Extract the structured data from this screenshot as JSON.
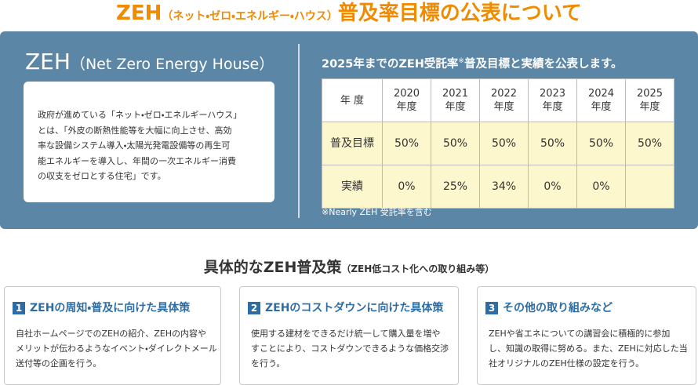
{
  "header": {
    "title_main": "ZEH",
    "title_note": "（ネット・ゼロ・エネルギー・ハウス）",
    "title_rest": "普及率目標の公表について"
  },
  "panel": {
    "left": {
      "title_main": "ZEH",
      "title_sub": "（Net Zero Energy House）",
      "body_lines": [
        "政府が進めている「ネット・ゼロ・エネルギーハウス」",
        "とは、「外皮の断熱性能等を大幅に向上させ、高効",
        "率な設備システム導入・太陽光発電設備等の再生可",
        "能エネルギーを導入し、年間の一次エネルギー消費",
        "の収支をゼロとする住宅」です。"
      ]
    },
    "right": {
      "heading_a": "2025年までのZEH受託率",
      "heading_mark": "※",
      "heading_b": "普及目標と実績を公表します。",
      "note": "※Nearly ZEH 受託率を含む"
    }
  },
  "table": {
    "header": [
      [
        "年 度"
      ],
      [
        "2020",
        "年度"
      ],
      [
        "2021",
        "年度"
      ],
      [
        "2022",
        "年度"
      ],
      [
        "2023",
        "年度"
      ],
      [
        "2024",
        "年度"
      ],
      [
        "2025",
        "年度"
      ]
    ],
    "rows": [
      [
        "普及目標",
        "50%",
        "50%",
        "50%",
        "50%",
        "50%",
        "50%"
      ],
      [
        "実績",
        "0%",
        "25%",
        "34%",
        "0%",
        "0%",
        null
      ]
    ]
  },
  "measures": {
    "title_main": "具体的なZEH普及策",
    "title_note": "（ZEH低コスト化への取り組み等）",
    "cards": [
      {
        "number": "1",
        "title": "ZEHの周知・普及に向けた具体策",
        "body_lines": [
          "自社ホームページでのZEHの紹介、ZEHの内容や",
          "メリットが伝わるようなイベント・ダイレクトメール",
          "送付等の企画を行う。"
        ]
      },
      {
        "number": "2",
        "title": "ZEHのコストダウンに向けた具体策",
        "body_lines": [
          "使用する建材をできるだけ統一して購入量を増や",
          "すことにより、コストダウンできるような価格交渉",
          "を行う。"
        ]
      },
      {
        "number": "3",
        "title": "その他の取り組みなど",
        "body_lines": [
          "ZEHや省エネについての講習会に積極的に参加",
          "し、知識の取得に努める。また、ZEHに対応した当",
          "社オリジナルのZEH仕様の設定を行う。"
        ]
      }
    ]
  }
}
